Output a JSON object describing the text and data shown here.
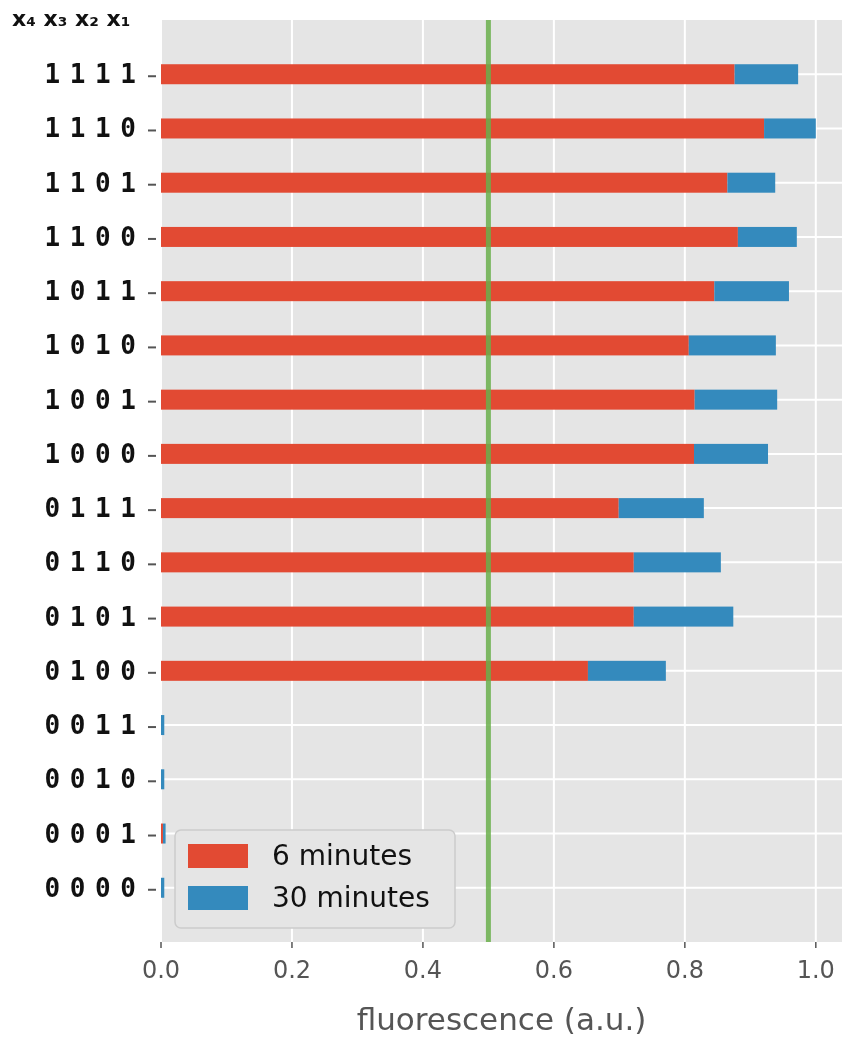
{
  "chart_data": {
    "type": "bar",
    "orientation": "horizontal",
    "stacked": true,
    "xlabel": "fluorescence (a.u.)",
    "categories": [
      "1 1 1 1",
      "1 1 1 0",
      "1 1 0 1",
      "1 1 0 0",
      "1 0 1 1",
      "1 0 1 0",
      "1 0 0 1",
      "1 0 0 0",
      "0 1 1 1",
      "0 1 1 0",
      "0 1 0 1",
      "0 1 0 0",
      "0 0 1 1",
      "0 0 1 0",
      "0 0 0 1",
      "0 0 0 0"
    ],
    "series": [
      {
        "name": "6 minutes",
        "color": "#e24a33",
        "values": [
          0.876,
          0.921,
          0.865,
          0.881,
          0.845,
          0.806,
          0.815,
          0.814,
          0.699,
          0.722,
          0.722,
          0.652,
          0,
          0,
          0.003,
          0
        ]
      },
      {
        "name": "30 minutes",
        "color": "#348abd",
        "values": [
          0.097,
          0.079,
          0.073,
          0.09,
          0.114,
          0.133,
          0.126,
          0.113,
          0.13,
          0.133,
          0.152,
          0.119,
          0.005,
          0.005,
          0.004,
          0.005
        ]
      }
    ],
    "xlim": [
      0,
      1.04
    ],
    "xticks": [
      {
        "value": 0,
        "label": "0.0"
      },
      {
        "value": 0.2,
        "label": "0.2"
      },
      {
        "value": 0.4,
        "label": "0.4"
      },
      {
        "value": 0.6,
        "label": "0.6"
      },
      {
        "value": 0.8,
        "label": "0.8"
      },
      {
        "value": 1,
        "label": "1.0"
      }
    ],
    "ref_lines": [
      {
        "axis": "x",
        "value": 0.5,
        "color": "#6ab04c"
      }
    ],
    "annotations": [
      "x₄ x₃ x₂ x₁"
    ],
    "grid": true,
    "legend": "bottom left"
  }
}
